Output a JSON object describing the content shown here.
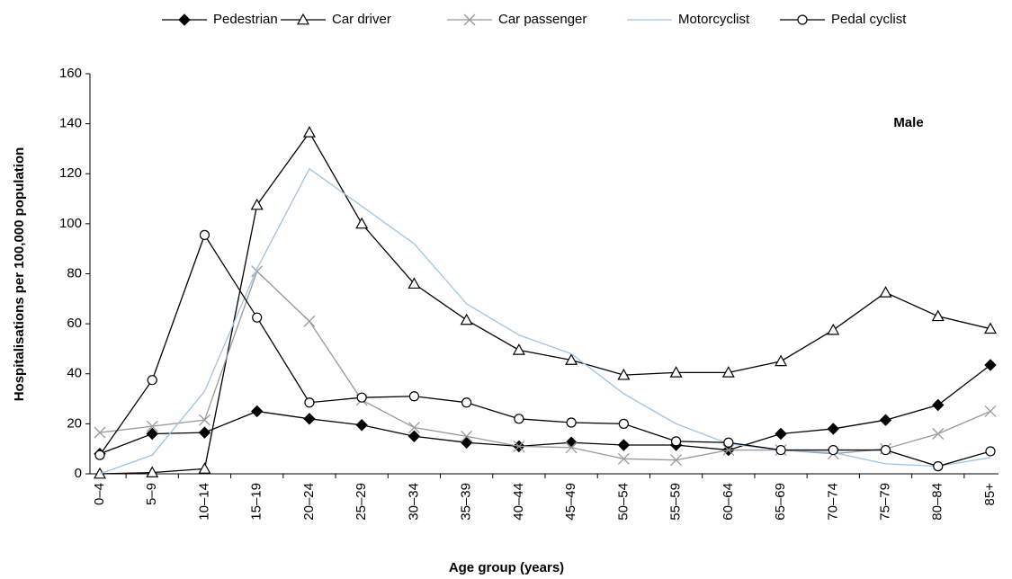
{
  "chart_data": {
    "type": "line",
    "x_label": "Age group (years)",
    "y_label": "Hospitalisations per 100,000 population",
    "annotation": "Male",
    "categories": [
      "0–4",
      "5–9",
      "10–14",
      "15–19",
      "20–24",
      "25–29",
      "30–34",
      "35–39",
      "40–44",
      "45–49",
      "50–54",
      "55–59",
      "60–64",
      "65–69",
      "70–74",
      "75–79",
      "80–84",
      "85+"
    ],
    "series": [
      {
        "name": "Pedestrian",
        "color": "#000000",
        "marker": "diamond",
        "values": [
          8,
          16,
          16.5,
          25,
          22,
          19.5,
          15,
          12.5,
          11,
          12.5,
          11.5,
          11.5,
          9.5,
          16,
          18,
          21.5,
          27.5,
          43.5
        ]
      },
      {
        "name": "Car driver",
        "color": "#000000",
        "marker": "triangle",
        "values": [
          0,
          0.5,
          2,
          107.5,
          136.5,
          100,
          76,
          61.5,
          49.5,
          45.5,
          39.5,
          40.5,
          40.5,
          45,
          57.5,
          72.5,
          63,
          58
        ]
      },
      {
        "name": "Car passenger",
        "color": "#999999",
        "marker": "x",
        "values": [
          16.5,
          19,
          21.5,
          81,
          61,
          29.5,
          18.5,
          15,
          11,
          10.5,
          6,
          5.5,
          9.5,
          9.5,
          8,
          10,
          16,
          25
        ]
      },
      {
        "name": "Motorcyclist",
        "color": "#9dc3e6",
        "marker": "none",
        "values": [
          0,
          7.5,
          33,
          82,
          122,
          107,
          92,
          68,
          55.5,
          48,
          32,
          20,
          12,
          9.5,
          8.5,
          4,
          3,
          6.5
        ]
      },
      {
        "name": "Pedal cyclist",
        "color": "#000000",
        "marker": "circle",
        "values": [
          7.5,
          37.5,
          95.5,
          62.5,
          28.5,
          30.5,
          31,
          28.5,
          22,
          20.5,
          20,
          13,
          12.5,
          9.5,
          9.5,
          9.5,
          3,
          9
        ]
      }
    ],
    "ylim": [
      0,
      160
    ],
    "yticks": [
      0,
      20,
      40,
      60,
      80,
      100,
      120,
      140,
      160
    ],
    "legend": "top"
  }
}
